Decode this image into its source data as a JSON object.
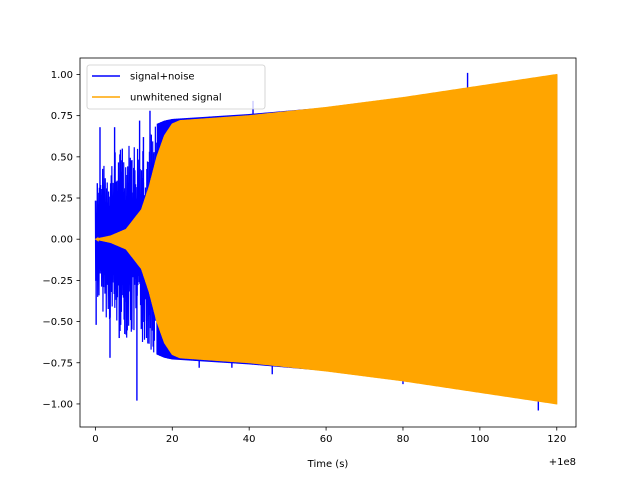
{
  "chart_data": {
    "type": "line",
    "title": "",
    "xlabel": "Time (s)",
    "ylabel": "",
    "x_offset_label": "+1e8",
    "xlim": [
      -4,
      125
    ],
    "ylim": [
      -1.14,
      1.1
    ],
    "x_ticks": [
      0,
      20,
      40,
      60,
      80,
      100,
      120
    ],
    "x_tick_labels": [
      "0",
      "20",
      "40",
      "60",
      "80",
      "100",
      "120"
    ],
    "y_ticks": [
      -1.0,
      -0.75,
      -0.5,
      -0.25,
      0.0,
      0.25,
      0.5,
      0.75,
      1.0
    ],
    "y_tick_labels": [
      "−1.00",
      "−0.75",
      "−0.50",
      "−0.25",
      "0.00",
      "0.25",
      "0.50",
      "0.75",
      "1.00"
    ],
    "grid": false,
    "legend_position": "top-left",
    "series": [
      {
        "name": "signal+noise",
        "color": "#0000ff",
        "style": "dense oscillation with noise spikes",
        "envelope_upper": [
          [
            0,
            0.35
          ],
          [
            2,
            0.45
          ],
          [
            4,
            0.52
          ],
          [
            6,
            0.56
          ],
          [
            8,
            0.6
          ],
          [
            10,
            0.62
          ],
          [
            12,
            0.65
          ],
          [
            14,
            0.68
          ],
          [
            16,
            0.7
          ],
          [
            18,
            0.72
          ],
          [
            20,
            0.73
          ],
          [
            40,
            0.76
          ],
          [
            60,
            0.8
          ],
          [
            80,
            0.86
          ],
          [
            100,
            0.93
          ],
          [
            120,
            1.0
          ]
        ],
        "spikes": [
          [
            0.2,
            -0.52
          ],
          [
            0.5,
            0.34
          ],
          [
            1.2,
            0.68
          ],
          [
            3.8,
            -0.72
          ],
          [
            5.0,
            0.68
          ],
          [
            6.2,
            -0.6
          ],
          [
            7.0,
            0.55
          ],
          [
            8.0,
            -0.58
          ],
          [
            9.5,
            0.48
          ],
          [
            10.8,
            -0.98
          ],
          [
            11.5,
            0.72
          ],
          [
            12.5,
            0.62
          ],
          [
            13.3,
            -0.6
          ],
          [
            14.2,
            0.78
          ],
          [
            15.0,
            0.52
          ],
          [
            27.0,
            -0.78
          ],
          [
            35.5,
            -0.78
          ],
          [
            41.0,
            0.84
          ],
          [
            46.0,
            -0.82
          ],
          [
            80.0,
            -0.88
          ],
          [
            96.8,
            1.01
          ],
          [
            105.0,
            -0.94
          ],
          [
            115.2,
            -1.04
          ]
        ]
      },
      {
        "name": "unwhitened signal",
        "color": "#ffa500",
        "style": "dense oscillation chirp",
        "envelope_upper": [
          [
            0,
            0.0
          ],
          [
            4,
            0.02
          ],
          [
            8,
            0.06
          ],
          [
            12,
            0.18
          ],
          [
            14,
            0.32
          ],
          [
            16,
            0.5
          ],
          [
            18,
            0.63
          ],
          [
            20,
            0.7
          ],
          [
            22,
            0.72
          ],
          [
            40,
            0.75
          ],
          [
            60,
            0.8
          ],
          [
            80,
            0.86
          ],
          [
            100,
            0.93
          ],
          [
            120,
            1.0
          ]
        ]
      }
    ]
  }
}
